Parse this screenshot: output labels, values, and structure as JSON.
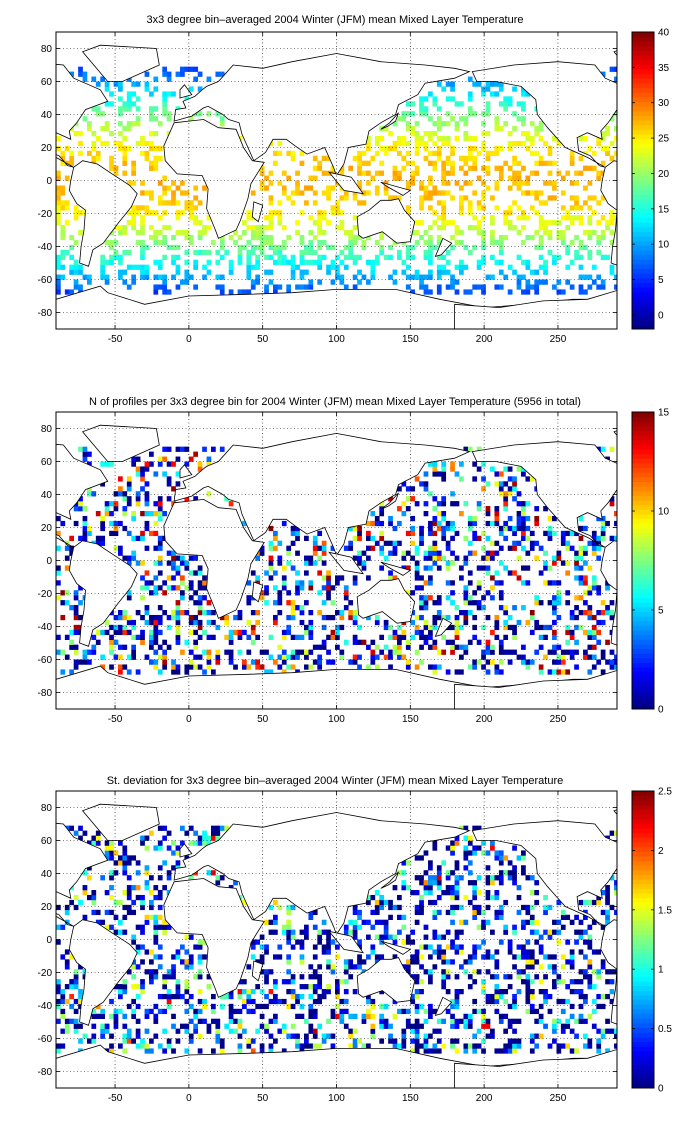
{
  "chart_data": [
    {
      "type": "heatmap",
      "title": "3x3 degree bin–averaged 2004 Winter (JFM) mean Mixed Layer Temperature",
      "xlabel": "",
      "ylabel": "",
      "xlim": [
        -90,
        290
      ],
      "ylim": [
        -90,
        90
      ],
      "xticks": [
        -50,
        0,
        50,
        100,
        150,
        200,
        250
      ],
      "yticks": [
        80,
        60,
        40,
        20,
        0,
        -20,
        -40,
        -60,
        -80
      ],
      "grid": true,
      "colorbar": {
        "min": -2,
        "max": 40,
        "ticks": [
          40,
          35,
          30,
          25,
          20,
          15,
          10,
          5,
          0
        ]
      },
      "bin_deg": 3
    },
    {
      "type": "heatmap",
      "title": "N of profiles per 3x3 degree bin for 2004 Winter (JFM) mean Mixed Layer Temperature  (5956 in total)",
      "xlabel": "",
      "ylabel": "",
      "xlim": [
        -90,
        290
      ],
      "ylim": [
        -90,
        90
      ],
      "xticks": [
        -50,
        0,
        50,
        100,
        150,
        200,
        250
      ],
      "yticks": [
        80,
        60,
        40,
        20,
        0,
        -20,
        -40,
        -60,
        -80
      ],
      "grid": true,
      "colorbar": {
        "min": 0,
        "max": 15,
        "ticks": [
          15,
          10,
          5,
          0
        ]
      },
      "bin_deg": 3
    },
    {
      "type": "heatmap",
      "title": "St. deviation for 3x3 degree bin–averaged 2004 Winter (JFM) mean Mixed Layer Temperature",
      "xlabel": "",
      "ylabel": "",
      "xlim": [
        -90,
        290
      ],
      "ylim": [
        -90,
        90
      ],
      "xticks": [
        -50,
        0,
        50,
        100,
        150,
        200,
        250
      ],
      "yticks": [
        80,
        60,
        40,
        20,
        0,
        -20,
        -40,
        -60,
        -80
      ],
      "grid": true,
      "colorbar": {
        "min": 0,
        "max": 2.5,
        "ticks": [
          2.5,
          2,
          1.5,
          1,
          0.5,
          0
        ]
      },
      "bin_deg": 3
    }
  ]
}
